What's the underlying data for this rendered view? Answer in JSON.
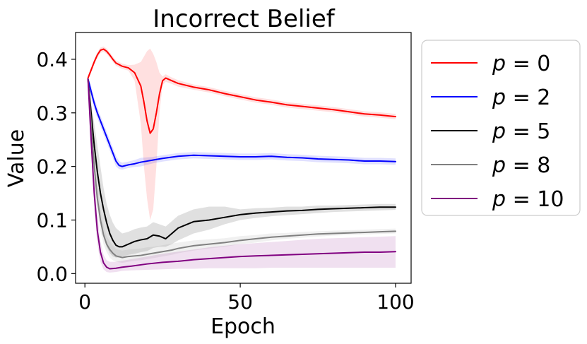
{
  "chart_data": {
    "type": "line",
    "title": "Incorrect Belief",
    "xlabel": "Epoch",
    "ylabel": "Value",
    "xlim": [
      -3,
      105
    ],
    "ylim": [
      -0.018,
      0.45
    ],
    "xticks": [
      0,
      50,
      100
    ],
    "yticks": [
      0.0,
      0.1,
      0.2,
      0.3,
      0.4
    ],
    "xtick_labels": [
      "0",
      "50",
      "100"
    ],
    "ytick_labels": [
      "0.0",
      "0.1",
      "0.2",
      "0.3",
      "0.4"
    ],
    "grid": false,
    "legend_placement": "outside-right",
    "series": [
      {
        "name": "p = 0",
        "legend_var": "p",
        "legend_value": "= 0",
        "color": "#ff0000",
        "x": [
          1,
          2,
          3,
          4,
          5,
          6,
          7,
          8,
          9,
          10,
          12,
          14,
          16,
          18,
          19,
          20,
          21,
          22,
          23,
          24,
          25,
          26,
          28,
          30,
          35,
          40,
          45,
          50,
          55,
          60,
          65,
          70,
          75,
          80,
          85,
          90,
          95,
          100
        ],
        "y": [
          0.365,
          0.38,
          0.395,
          0.408,
          0.417,
          0.419,
          0.415,
          0.408,
          0.4,
          0.393,
          0.387,
          0.384,
          0.375,
          0.35,
          0.32,
          0.285,
          0.262,
          0.27,
          0.3,
          0.335,
          0.36,
          0.365,
          0.36,
          0.355,
          0.348,
          0.343,
          0.336,
          0.33,
          0.324,
          0.32,
          0.315,
          0.312,
          0.309,
          0.306,
          0.302,
          0.298,
          0.296,
          0.293
        ],
        "lower": [
          0.36,
          0.375,
          0.39,
          0.403,
          0.412,
          0.414,
          0.41,
          0.403,
          0.395,
          0.388,
          0.382,
          0.379,
          0.36,
          0.28,
          0.2,
          0.14,
          0.1,
          0.12,
          0.2,
          0.3,
          0.352,
          0.358,
          0.354,
          0.349,
          0.343,
          0.338,
          0.331,
          0.325,
          0.319,
          0.315,
          0.31,
          0.307,
          0.304,
          0.301,
          0.297,
          0.293,
          0.291,
          0.288
        ],
        "upper": [
          0.37,
          0.385,
          0.4,
          0.413,
          0.422,
          0.424,
          0.42,
          0.413,
          0.405,
          0.398,
          0.392,
          0.389,
          0.39,
          0.395,
          0.405,
          0.415,
          0.42,
          0.41,
          0.395,
          0.375,
          0.368,
          0.372,
          0.366,
          0.361,
          0.353,
          0.348,
          0.341,
          0.335,
          0.329,
          0.325,
          0.32,
          0.317,
          0.314,
          0.311,
          0.307,
          0.303,
          0.301,
          0.298
        ]
      },
      {
        "name": "p = 2",
        "legend_var": "p",
        "legend_value": "= 2",
        "color": "#0000ff",
        "x": [
          1,
          2,
          3,
          4,
          5,
          6,
          7,
          8,
          9,
          10,
          11,
          12,
          14,
          16,
          18,
          20,
          22,
          25,
          30,
          35,
          40,
          45,
          50,
          55,
          60,
          65,
          70,
          75,
          80,
          85,
          90,
          95,
          100
        ],
        "y": [
          0.363,
          0.34,
          0.318,
          0.3,
          0.285,
          0.27,
          0.255,
          0.24,
          0.225,
          0.21,
          0.202,
          0.2,
          0.203,
          0.205,
          0.208,
          0.21,
          0.212,
          0.215,
          0.219,
          0.221,
          0.22,
          0.219,
          0.218,
          0.218,
          0.219,
          0.217,
          0.216,
          0.214,
          0.213,
          0.212,
          0.21,
          0.21,
          0.209
        ],
        "lower": [
          0.358,
          0.33,
          0.308,
          0.29,
          0.275,
          0.26,
          0.245,
          0.23,
          0.215,
          0.2,
          0.195,
          0.194,
          0.197,
          0.199,
          0.2,
          0.203,
          0.206,
          0.209,
          0.213,
          0.215,
          0.214,
          0.213,
          0.212,
          0.212,
          0.213,
          0.211,
          0.21,
          0.208,
          0.207,
          0.206,
          0.204,
          0.204,
          0.203
        ],
        "upper": [
          0.368,
          0.35,
          0.328,
          0.31,
          0.295,
          0.28,
          0.265,
          0.25,
          0.235,
          0.22,
          0.21,
          0.207,
          0.209,
          0.212,
          0.216,
          0.217,
          0.218,
          0.221,
          0.225,
          0.227,
          0.226,
          0.225,
          0.224,
          0.224,
          0.225,
          0.223,
          0.222,
          0.22,
          0.219,
          0.218,
          0.216,
          0.216,
          0.215
        ]
      },
      {
        "name": "p = 5",
        "legend_var": "p",
        "legend_value": "= 5",
        "color": "#000000",
        "x": [
          1,
          2,
          3,
          4,
          5,
          6,
          7,
          8,
          9,
          10,
          11,
          12,
          14,
          16,
          18,
          20,
          22,
          24,
          26,
          28,
          30,
          35,
          40,
          45,
          50,
          55,
          60,
          65,
          70,
          75,
          80,
          85,
          90,
          95,
          100
        ],
        "y": [
          0.363,
          0.3,
          0.24,
          0.19,
          0.15,
          0.12,
          0.095,
          0.075,
          0.062,
          0.053,
          0.05,
          0.05,
          0.055,
          0.06,
          0.063,
          0.065,
          0.072,
          0.07,
          0.065,
          0.075,
          0.085,
          0.097,
          0.1,
          0.105,
          0.11,
          0.113,
          0.115,
          0.117,
          0.118,
          0.12,
          0.121,
          0.122,
          0.123,
          0.124,
          0.124
        ],
        "lower": [
          0.358,
          0.28,
          0.2,
          0.14,
          0.1,
          0.07,
          0.05,
          0.038,
          0.032,
          0.03,
          0.03,
          0.032,
          0.035,
          0.037,
          0.04,
          0.042,
          0.048,
          0.05,
          0.05,
          0.055,
          0.062,
          0.075,
          0.082,
          0.092,
          0.1,
          0.104,
          0.107,
          0.109,
          0.111,
          0.113,
          0.115,
          0.116,
          0.117,
          0.118,
          0.119
        ],
        "upper": [
          0.368,
          0.32,
          0.28,
          0.24,
          0.2,
          0.16,
          0.13,
          0.11,
          0.095,
          0.085,
          0.08,
          0.075,
          0.078,
          0.083,
          0.086,
          0.088,
          0.096,
          0.092,
          0.088,
          0.098,
          0.108,
          0.12,
          0.125,
          0.125,
          0.12,
          0.122,
          0.123,
          0.125,
          0.125,
          0.127,
          0.127,
          0.128,
          0.129,
          0.13,
          0.13
        ]
      },
      {
        "name": "p = 8",
        "legend_var": "p",
        "legend_value": "= 8",
        "color": "#808080",
        "x": [
          1,
          2,
          3,
          4,
          5,
          6,
          7,
          8,
          9,
          10,
          12,
          14,
          16,
          18,
          20,
          22,
          24,
          26,
          28,
          30,
          35,
          40,
          45,
          50,
          55,
          60,
          65,
          70,
          75,
          80,
          85,
          90,
          95,
          100
        ],
        "y": [
          0.363,
          0.28,
          0.2,
          0.14,
          0.1,
          0.072,
          0.055,
          0.045,
          0.038,
          0.033,
          0.03,
          0.032,
          0.033,
          0.034,
          0.036,
          0.038,
          0.04,
          0.042,
          0.044,
          0.047,
          0.052,
          0.055,
          0.058,
          0.062,
          0.065,
          0.068,
          0.07,
          0.072,
          0.074,
          0.075,
          0.076,
          0.077,
          0.078,
          0.079
        ],
        "lower": [
          0.358,
          0.265,
          0.18,
          0.12,
          0.08,
          0.055,
          0.04,
          0.03,
          0.025,
          0.022,
          0.02,
          0.022,
          0.024,
          0.025,
          0.027,
          0.029,
          0.031,
          0.033,
          0.035,
          0.038,
          0.043,
          0.047,
          0.05,
          0.055,
          0.058,
          0.062,
          0.065,
          0.067,
          0.069,
          0.071,
          0.072,
          0.073,
          0.074,
          0.075
        ],
        "upper": [
          0.368,
          0.295,
          0.22,
          0.16,
          0.12,
          0.09,
          0.07,
          0.06,
          0.052,
          0.046,
          0.043,
          0.045,
          0.046,
          0.047,
          0.049,
          0.05,
          0.052,
          0.054,
          0.056,
          0.058,
          0.062,
          0.064,
          0.066,
          0.07,
          0.072,
          0.075,
          0.076,
          0.078,
          0.079,
          0.08,
          0.081,
          0.082,
          0.083,
          0.084
        ]
      },
      {
        "name": "p = 10",
        "legend_var": "p",
        "legend_value": "= 10",
        "color": "#800080",
        "x": [
          1,
          2,
          3,
          4,
          5,
          6,
          7,
          8,
          10,
          12,
          15,
          20,
          25,
          30,
          35,
          40,
          45,
          50,
          55,
          60,
          65,
          70,
          75,
          80,
          85,
          90,
          95,
          100
        ],
        "y": [
          0.363,
          0.25,
          0.15,
          0.08,
          0.04,
          0.02,
          0.012,
          0.009,
          0.01,
          0.012,
          0.014,
          0.018,
          0.021,
          0.023,
          0.026,
          0.028,
          0.03,
          0.032,
          0.033,
          0.034,
          0.035,
          0.036,
          0.037,
          0.038,
          0.039,
          0.04,
          0.04,
          0.041
        ],
        "lower": [
          0.355,
          0.23,
          0.12,
          0.055,
          0.022,
          0.008,
          0.003,
          0.002,
          0.003,
          0.005,
          0.006,
          0.007,
          0.008,
          0.009,
          0.009,
          0.01,
          0.01,
          0.01,
          0.01,
          0.011,
          0.011,
          0.011,
          0.011,
          0.011,
          0.011,
          0.011,
          0.011,
          0.011
        ],
        "upper": [
          0.37,
          0.27,
          0.18,
          0.11,
          0.06,
          0.035,
          0.025,
          0.022,
          0.022,
          0.024,
          0.027,
          0.032,
          0.037,
          0.041,
          0.045,
          0.049,
          0.052,
          0.055,
          0.057,
          0.059,
          0.061,
          0.063,
          0.065,
          0.066,
          0.067,
          0.068,
          0.069,
          0.07
        ]
      }
    ]
  }
}
